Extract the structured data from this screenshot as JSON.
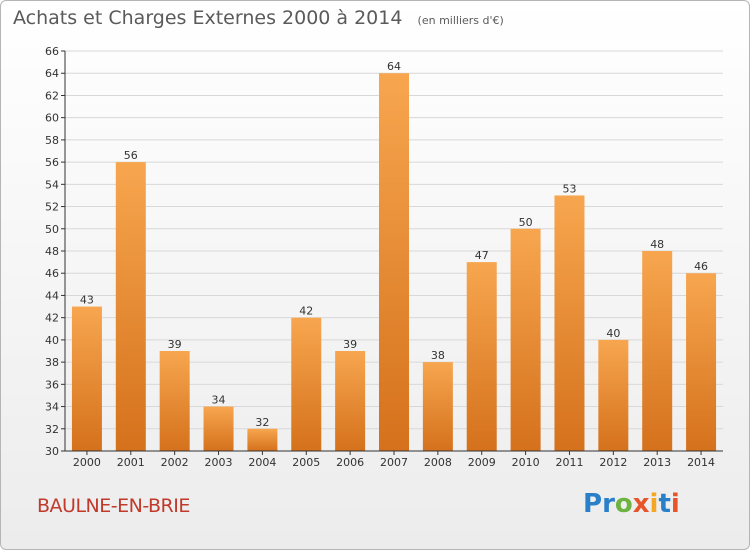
{
  "title": "Achats et Charges Externes 2000 à 2014",
  "unit_note": "(en milliers d'€)",
  "commune": "BAULNE-EN-BRIE",
  "logo": {
    "letters": [
      "P",
      "r",
      "o",
      "x",
      "i",
      "t",
      "i"
    ]
  },
  "colors": {
    "bar_top": "#f7a64f",
    "bar_bottom": "#d5711c",
    "grid": "#d8d8d8",
    "axis": "#333333"
  },
  "chart_data": {
    "type": "bar",
    "title": "Achats et Charges Externes 2000 à 2014",
    "xlabel": "",
    "ylabel": "",
    "categories": [
      "2000",
      "2001",
      "2002",
      "2003",
      "2004",
      "2005",
      "2006",
      "2007",
      "2008",
      "2009",
      "2010",
      "2011",
      "2012",
      "2013",
      "2014"
    ],
    "values": [
      43,
      56,
      39,
      34,
      32,
      42,
      39,
      64,
      38,
      47,
      50,
      53,
      40,
      48,
      46
    ],
    "ylim": [
      30,
      66
    ],
    "ytick_step": 2,
    "grid": true,
    "legend": "none"
  }
}
